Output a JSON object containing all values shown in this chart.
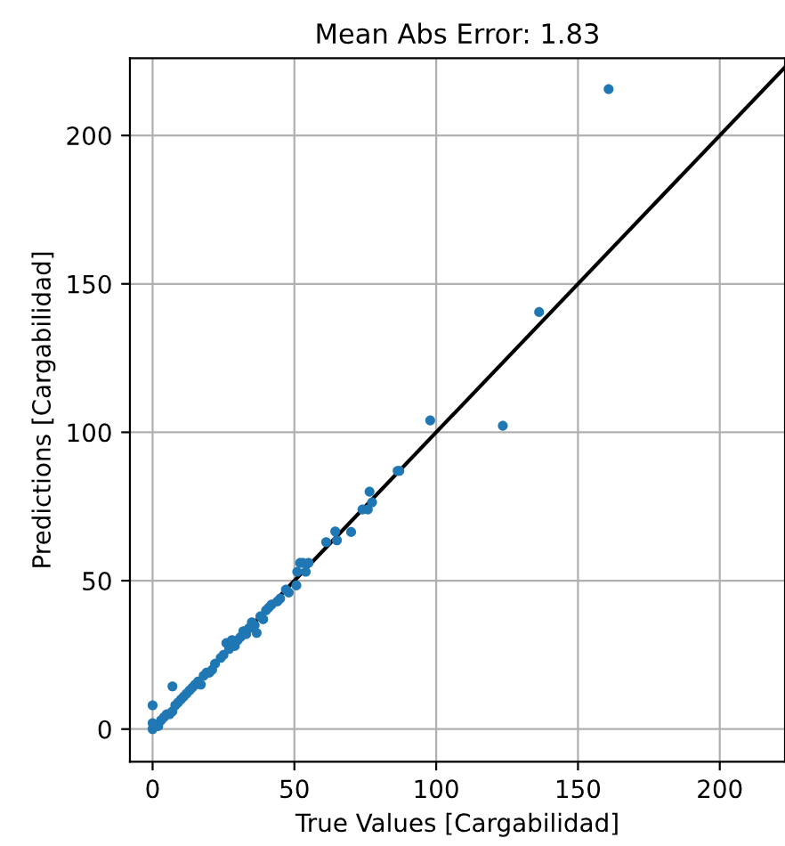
{
  "chart_data": {
    "type": "scatter",
    "title": "Mean Abs Error: 1.83",
    "xlabel": "True Values [Cargabilidad]",
    "ylabel": "Predictions [Cargabilidad]",
    "xlim": [
      -8,
      223
    ],
    "ylim": [
      -11,
      226
    ],
    "xticks": [
      0,
      50,
      100,
      150,
      200
    ],
    "yticks": [
      0,
      50,
      100,
      150,
      200
    ],
    "grid": true,
    "series": [
      {
        "marker": "circle",
        "color": "#1f77b4",
        "x": [
          0,
          0,
          0,
          2,
          3,
          4,
          5,
          6,
          7,
          7,
          8,
          9,
          10,
          11,
          12,
          13,
          14,
          15,
          16,
          17,
          18,
          19,
          20,
          21,
          22,
          24,
          25,
          26,
          27,
          28,
          29,
          30,
          31,
          32,
          33,
          34,
          35,
          36,
          36.7,
          38,
          39,
          40,
          41,
          42,
          44,
          45,
          47,
          48,
          50.7,
          51,
          52,
          53,
          54,
          55,
          61.2,
          64.4,
          65,
          70,
          74,
          75.9,
          76.5,
          77.4,
          86.4,
          87,
          97.9,
          123.5,
          136.3,
          160.8
        ],
        "values": [
          0,
          2,
          8,
          1,
          3,
          4,
          5,
          5,
          14.4,
          6,
          8,
          9,
          10,
          11,
          12,
          13,
          14,
          15,
          16,
          15,
          18,
          19,
          19,
          20,
          22,
          24,
          25,
          29,
          27,
          30,
          28,
          30,
          31,
          33,
          32,
          34,
          36,
          35,
          32.4,
          38,
          37,
          40,
          41,
          42,
          43,
          44,
          47,
          46,
          48.4,
          53,
          56,
          56,
          53,
          56,
          63,
          66.6,
          63.6,
          66.4,
          74,
          74,
          80,
          76.4,
          87,
          87,
          104,
          102.2,
          140.5,
          215.6
        ]
      },
      {
        "type": "line",
        "color": "#000000",
        "line_style": "solid",
        "x": [
          0,
          223
        ],
        "values": [
          0,
          223
        ]
      }
    ]
  }
}
